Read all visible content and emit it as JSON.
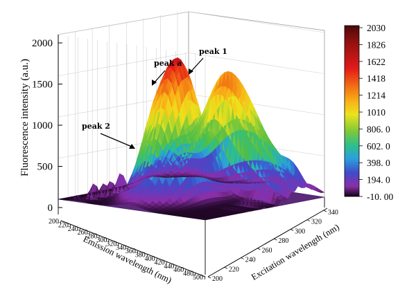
{
  "chart_data": {
    "type": "surface3d",
    "z_axis": {
      "label": "Fluorescence intensity (a.u.)",
      "ticks": [
        "0",
        "500",
        "1000",
        "1500",
        "2000"
      ],
      "range": [
        0,
        2000
      ]
    },
    "emission_axis": {
      "label": "Emission wavelength (nm)",
      "ticks": [
        "200",
        "220",
        "240",
        "260",
        "280",
        "300",
        "320",
        "340",
        "360",
        "380",
        "400",
        "420",
        "440",
        "460",
        "480",
        "500"
      ],
      "range": [
        200,
        500
      ]
    },
    "excitation_axis": {
      "label": "Excitation wavelength (nm)",
      "ticks": [
        "200",
        "220",
        "240",
        "260",
        "280",
        "300",
        "320",
        "340"
      ],
      "range": [
        200,
        340
      ]
    },
    "colorbar": {
      "ticks": [
        "2030",
        "1826",
        "1622",
        "1418",
        "1214",
        "1010",
        "806. 0",
        "602. 0",
        "398. 0",
        "194. 0",
        "-10. 00"
      ],
      "colors": [
        "#4a0a0a",
        "#8e1010",
        "#e21a1a",
        "#f26a14",
        "#f8b618",
        "#ece21c",
        "#7dc83a",
        "#2fbf8a",
        "#2a9fde",
        "#3f4cc8",
        "#8a2fa8",
        "#150318"
      ]
    },
    "peaks": [
      {
        "label": "peak 1",
        "emission": 350,
        "excitation": 280,
        "intensity": 1650
      },
      {
        "label": "peak a",
        "emission": 350,
        "excitation": 230,
        "intensity": 1400
      },
      {
        "label": "peak 2",
        "emission": 300,
        "excitation": 280,
        "intensity": 800
      }
    ],
    "grid": true,
    "legend_position": "right"
  }
}
